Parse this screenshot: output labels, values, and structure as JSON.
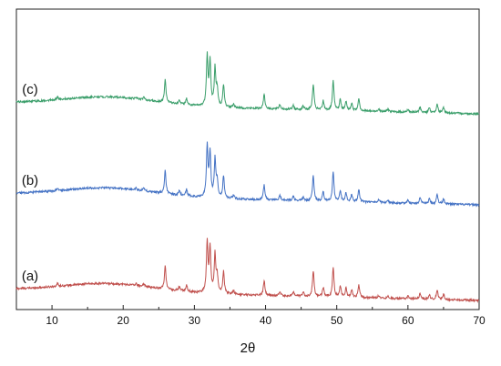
{
  "chart_data": {
    "type": "line",
    "title": "",
    "xlabel": "2θ",
    "ylabel": "",
    "xlim": [
      5,
      70
    ],
    "x_ticks": [
      10,
      20,
      30,
      40,
      50,
      60,
      70
    ],
    "x_tick_labels": [
      "10",
      "20",
      "30",
      "40",
      "50",
      "60",
      "70"
    ],
    "y_ticks_visible": false,
    "grid": false,
    "legend": "none",
    "series": [
      {
        "name": "(a)",
        "color": "#c0504d",
        "baseline_offset": 0,
        "peaks": [
          [
            10.8,
            3
          ],
          [
            21.8,
            2
          ],
          [
            22.9,
            3
          ],
          [
            25.9,
            26
          ],
          [
            27.9,
            5
          ],
          [
            28.9,
            7
          ],
          [
            31.8,
            56
          ],
          [
            32.2,
            48
          ],
          [
            32.9,
            42
          ],
          [
            33.2,
            18
          ],
          [
            34.1,
            24
          ],
          [
            35.5,
            4
          ],
          [
            39.8,
            16
          ],
          [
            42.0,
            5
          ],
          [
            43.9,
            4
          ],
          [
            45.3,
            4
          ],
          [
            46.7,
            28
          ],
          [
            48.1,
            10
          ],
          [
            49.5,
            32
          ],
          [
            50.5,
            12
          ],
          [
            51.3,
            10
          ],
          [
            52.1,
            8
          ],
          [
            53.1,
            14
          ],
          [
            55.9,
            3
          ],
          [
            57.2,
            3
          ],
          [
            60.0,
            3
          ],
          [
            61.7,
            6
          ],
          [
            63.0,
            5
          ],
          [
            64.1,
            10
          ],
          [
            65.0,
            6
          ]
        ]
      },
      {
        "name": "(b)",
        "color": "#4472c4",
        "baseline_offset": 105,
        "peaks": [
          [
            10.8,
            3
          ],
          [
            21.8,
            2
          ],
          [
            22.9,
            3
          ],
          [
            25.9,
            26
          ],
          [
            27.9,
            5
          ],
          [
            28.9,
            7
          ],
          [
            31.8,
            56
          ],
          [
            32.2,
            48
          ],
          [
            32.9,
            42
          ],
          [
            33.2,
            18
          ],
          [
            34.1,
            24
          ],
          [
            35.5,
            4
          ],
          [
            39.8,
            16
          ],
          [
            42.0,
            5
          ],
          [
            43.9,
            4
          ],
          [
            45.3,
            4
          ],
          [
            46.7,
            28
          ],
          [
            48.1,
            10
          ],
          [
            49.5,
            32
          ],
          [
            50.5,
            12
          ],
          [
            51.3,
            10
          ],
          [
            52.1,
            8
          ],
          [
            53.1,
            14
          ],
          [
            55.9,
            3
          ],
          [
            57.2,
            3
          ],
          [
            60.0,
            3
          ],
          [
            61.7,
            6
          ],
          [
            63.0,
            5
          ],
          [
            64.1,
            10
          ],
          [
            65.0,
            6
          ]
        ]
      },
      {
        "name": "(c)",
        "color": "#3a9e6a",
        "baseline_offset": 205,
        "peaks": [
          [
            10.8,
            3
          ],
          [
            21.8,
            2
          ],
          [
            22.9,
            3
          ],
          [
            25.9,
            26
          ],
          [
            27.9,
            5
          ],
          [
            28.9,
            7
          ],
          [
            31.8,
            56
          ],
          [
            32.2,
            48
          ],
          [
            32.9,
            42
          ],
          [
            33.2,
            18
          ],
          [
            34.1,
            24
          ],
          [
            35.5,
            4
          ],
          [
            39.8,
            16
          ],
          [
            42.0,
            5
          ],
          [
            43.9,
            4
          ],
          [
            45.3,
            4
          ],
          [
            46.7,
            28
          ],
          [
            48.1,
            10
          ],
          [
            49.5,
            32
          ],
          [
            50.5,
            12
          ],
          [
            51.3,
            10
          ],
          [
            52.1,
            8
          ],
          [
            53.1,
            14
          ],
          [
            55.9,
            3
          ],
          [
            57.2,
            3
          ],
          [
            60.0,
            3
          ],
          [
            61.7,
            6
          ],
          [
            63.0,
            5
          ],
          [
            64.1,
            10
          ],
          [
            65.0,
            6
          ]
        ]
      }
    ]
  }
}
